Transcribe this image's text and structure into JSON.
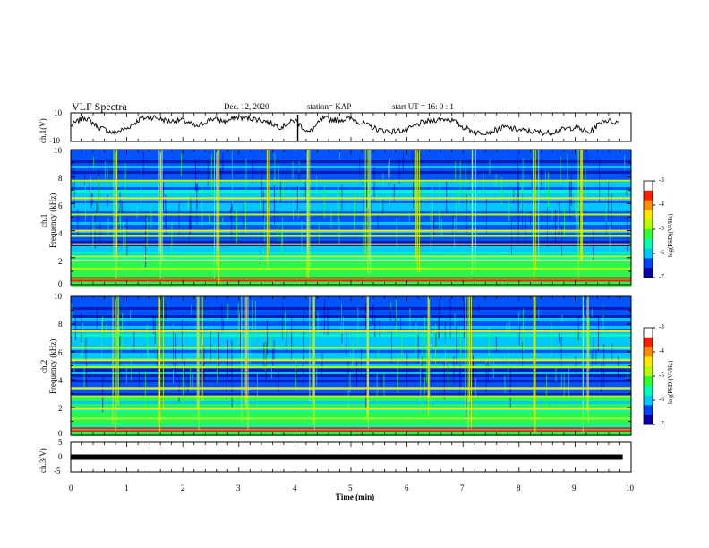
{
  "header": {
    "title": "VLF Spectra",
    "date": "Dec. 12, 2020",
    "station": "station= KAP",
    "start": "start  UT  =   16: 0  : 1"
  },
  "colormap": [
    "#0a00a8",
    "#0040ff",
    "#00c8ff",
    "#00ffb4",
    "#30ff30",
    "#b4ff00",
    "#ffe600",
    "#ff8a00",
    "#ff1e00",
    "#ffffff"
  ],
  "chart_data": [
    {
      "type": "line",
      "name": "ch1-waveform",
      "ylabel": "ch.1(V)",
      "ylim": [
        -10,
        10
      ],
      "yticks": [
        "10",
        "-10"
      ],
      "xlim": [
        0,
        10
      ],
      "x": [
        0,
        0.25,
        0.5,
        0.75,
        1.0,
        1.25,
        1.5,
        1.75,
        2.0,
        2.25,
        2.5,
        2.75,
        3.0,
        3.25,
        3.5,
        3.75,
        4.0,
        4.25,
        4.5,
        4.75,
        5.0,
        5.25,
        5.5,
        5.75,
        6.0,
        6.25,
        6.5,
        6.75,
        7.0,
        7.25,
        7.5,
        7.75,
        8.0,
        8.25,
        8.5,
        8.75,
        9.0,
        9.25,
        9.5,
        9.8
      ],
      "y": [
        1,
        7,
        0,
        -4,
        -1,
        6,
        7,
        4,
        5,
        0,
        6,
        4,
        7,
        6,
        4,
        0,
        5,
        -4,
        6,
        5,
        6,
        2,
        -2,
        -3,
        -2,
        3,
        5,
        6,
        0,
        -4,
        -3,
        0,
        -2,
        -3,
        -4,
        -2,
        0,
        -4,
        5,
        3
      ]
    },
    {
      "type": "heatmap",
      "name": "ch1-spectrogram",
      "ylabel": "ch.1\nFrequency (kHz)",
      "ylim": [
        0,
        10
      ],
      "yticks": [
        "0",
        "2",
        "4",
        "6",
        "8",
        "10"
      ],
      "xlim": [
        0,
        10
      ],
      "colorbar": {
        "label": "log(PSD)(V²/Hz)",
        "range": [
          -7,
          -3
        ],
        "ticks": [
          "-3",
          "-4",
          "-5",
          "-6",
          "-7"
        ]
      },
      "bands_khz": [
        0.3,
        0.5,
        1.2,
        1.8,
        2.1,
        3.0,
        3.6,
        4.0,
        5.2,
        6.4,
        7.7
      ],
      "vertical_events_min": [
        0.8,
        1.6,
        2.6,
        3.5,
        4.2,
        5.3,
        6.2,
        7.2,
        8.3,
        9.1
      ]
    },
    {
      "type": "heatmap",
      "name": "ch2-spectrogram",
      "ylabel": "ch.2\nFrequency (kHz)",
      "ylim": [
        0,
        10
      ],
      "yticks": [
        "0",
        "2",
        "4",
        "6",
        "8",
        "10"
      ],
      "xlim": [
        0,
        10
      ],
      "colorbar": {
        "label": "log(PSD)(V²/Hz)",
        "range": [
          -7,
          -3
        ],
        "ticks": [
          "-3",
          "-4",
          "-5",
          "-6",
          "-7"
        ]
      },
      "bands_khz": [
        0.3,
        0.5,
        1.2,
        1.9,
        2.8,
        3.4,
        4.9,
        5.4,
        6.3,
        7.5
      ],
      "vertical_events_min": [
        0.8,
        1.6,
        2.3,
        3.1,
        4.3,
        5.3,
        6.4,
        7.1,
        8.3,
        9.2
      ]
    },
    {
      "type": "line",
      "name": "ch3-waveform",
      "ylabel": "ch.3(V)",
      "ylim": [
        -5,
        5
      ],
      "yticks": [
        "5",
        "0",
        "-5"
      ],
      "xlim": [
        0,
        10
      ],
      "x": [
        0,
        9.85
      ],
      "y": [
        0,
        0
      ],
      "xlabel": "Time  (min)",
      "xticks": [
        "0",
        "1",
        "2",
        "3",
        "4",
        "5",
        "6",
        "7",
        "8",
        "9",
        "10"
      ]
    }
  ]
}
